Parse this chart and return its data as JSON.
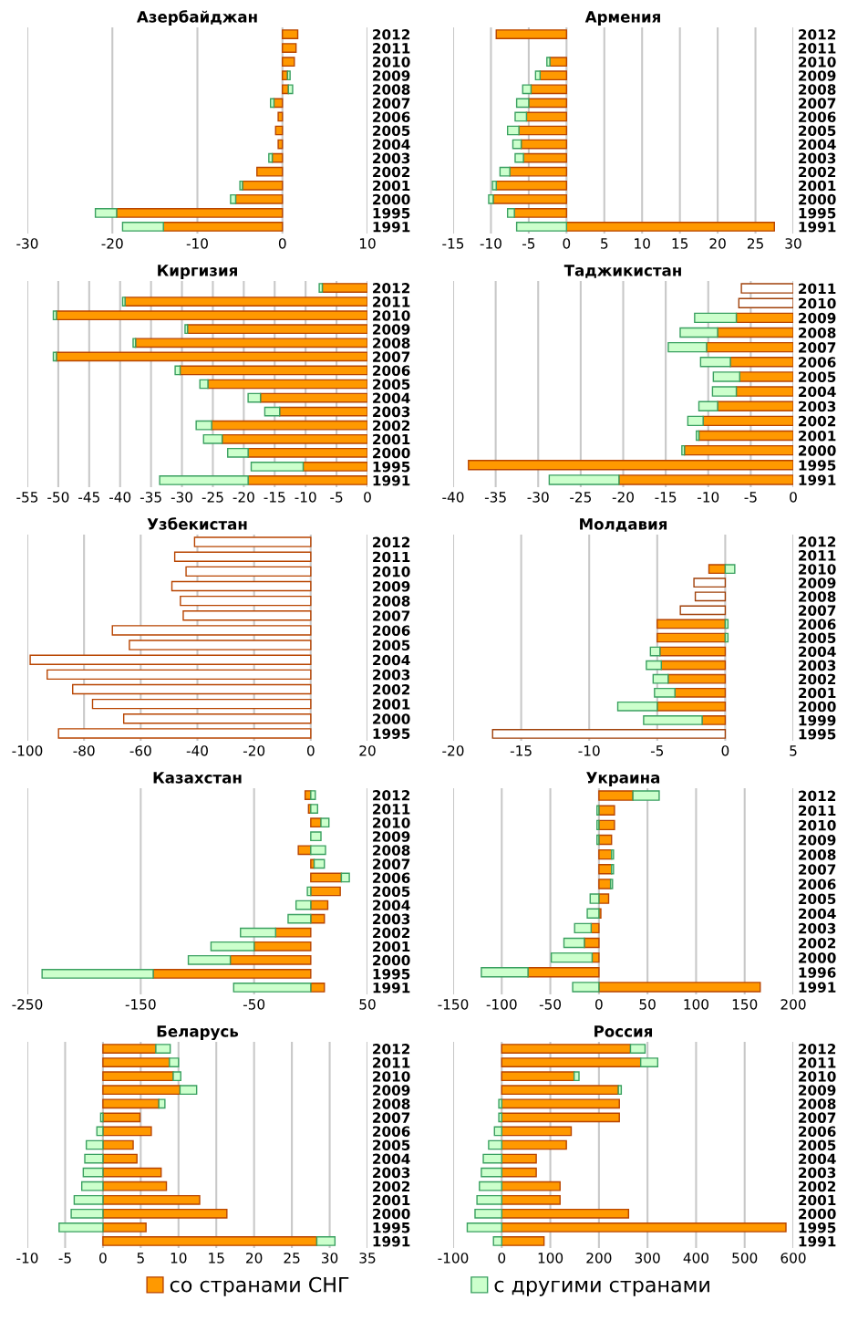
{
  "chart_data": [
    {
      "type": "bar",
      "orientation": "horizontal",
      "stacked": true,
      "title": "Азербайджан",
      "categories": [
        "2012",
        "2011",
        "2010",
        "2009",
        "2008",
        "2007",
        "2006",
        "2005",
        "2004",
        "2003",
        "2002",
        "2001",
        "2000",
        "1995",
        "1991"
      ],
      "series": [
        {
          "name": "со странами СНГ",
          "color": "#ff9900",
          "values": [
            1.8,
            1.6,
            1.4,
            0.6,
            0.7,
            -1.0,
            -0.5,
            -0.8,
            -0.5,
            -1.2,
            -3.0,
            -4.7,
            -5.5,
            -19.5,
            -14
          ]
        },
        {
          "name": "с другими странами",
          "color": "#ccffcc",
          "values": [
            null,
            null,
            null,
            0.3,
            0.5,
            -0.4,
            null,
            null,
            null,
            -0.4,
            null,
            -0.3,
            -0.6,
            -2.5,
            -4.8
          ]
        }
      ],
      "xlim": [
        -30,
        10
      ],
      "xticks": [
        -30,
        -20,
        -10,
        0,
        10
      ],
      "grid": "x",
      "legend": "bottom"
    },
    {
      "type": "bar",
      "orientation": "horizontal",
      "stacked": true,
      "title": "Армения",
      "categories": [
        "2012",
        "2011",
        "2010",
        "2009",
        "2008",
        "2007",
        "2006",
        "2005",
        "2004",
        "2003",
        "2002",
        "2001",
        "2000",
        "1995",
        "1991"
      ],
      "series": [
        {
          "name": "со странами СНГ",
          "color": "#ff9900",
          "values": [
            -9.3,
            null,
            -2.2,
            -3.5,
            -4.7,
            -5.0,
            -5.3,
            -6.3,
            -6.0,
            -5.7,
            -7.5,
            -9.3,
            -9.7,
            -6.9,
            27.5
          ]
        },
        {
          "name": "с другими странами",
          "color": "#ccffcc",
          "values": [
            null,
            null,
            -0.4,
            -0.6,
            -1.1,
            -1.6,
            -1.5,
            -1.5,
            -1.1,
            -1.1,
            -1.3,
            -0.5,
            -0.6,
            -0.9,
            -6.6
          ]
        }
      ],
      "xlim": [
        -15,
        30
      ],
      "xticks": [
        -15,
        -10,
        -5,
        0,
        5,
        10,
        15,
        20,
        25,
        30
      ],
      "grid": "x",
      "legend": "bottom"
    },
    {
      "type": "bar",
      "orientation": "horizontal",
      "stacked": true,
      "title": "Киргизия",
      "categories": [
        "2012",
        "2011",
        "2010",
        "2009",
        "2008",
        "2007",
        "2006",
        "2005",
        "2004",
        "2003",
        "2002",
        "2001",
        "2000",
        "1995",
        "1991"
      ],
      "series": [
        {
          "name": "со странами СНГ",
          "color": "#ff9900",
          "values": [
            -7.3,
            -39.2,
            -50.3,
            -29.1,
            -37.5,
            -50.3,
            -30.3,
            -25.8,
            -17.3,
            -14.2,
            -25.2,
            -23.5,
            -19.3,
            -10.4,
            -19.3
          ]
        },
        {
          "name": "с другими странами",
          "color": "#ccffcc",
          "values": [
            -0.5,
            -0.4,
            -0.5,
            -0.4,
            -0.4,
            -0.5,
            -0.8,
            -1.3,
            -2.0,
            -2.4,
            -2.5,
            -3.0,
            -3.3,
            -8.4,
            -14.3
          ]
        }
      ],
      "xlim": [
        -55,
        0
      ],
      "xticks": [
        -55,
        -50,
        -45,
        -40,
        -35,
        -30,
        -25,
        -20,
        -15,
        -10,
        -5,
        0
      ],
      "grid": "x",
      "legend": "bottom"
    },
    {
      "type": "bar",
      "orientation": "horizontal",
      "stacked": true,
      "title": "Таджикистан",
      "categories": [
        "2011",
        "2010",
        "2009",
        "2008",
        "2007",
        "2006",
        "2005",
        "2004",
        "2003",
        "2002",
        "2001",
        "2000",
        "1995",
        "1991"
      ],
      "series": [
        {
          "name": "со странами СНГ",
          "color": "#ff9900",
          "values": [
            null,
            null,
            -6.7,
            -8.9,
            -10.2,
            -7.4,
            -6.3,
            -6.7,
            -8.9,
            -10.6,
            -11.1,
            -12.8,
            -38.2,
            -20.5
          ]
        },
        {
          "name": "с другими странами",
          "color": "#ccffcc",
          "values": [
            null,
            null,
            -4.9,
            -4.4,
            -4.5,
            -3.5,
            -3.1,
            -2.8,
            -2.2,
            -1.8,
            -0.3,
            -0.3,
            null,
            -8.2
          ]
        },
        {
          "color": "#ffffff",
          "values": [
            -6.1,
            -6.4,
            null,
            null,
            null,
            null,
            null,
            null,
            null,
            null,
            null,
            null,
            null,
            null
          ]
        }
      ],
      "xlim": [
        -40,
        0
      ],
      "xticks": [
        -40,
        -35,
        -30,
        -25,
        -20,
        -15,
        -10,
        -5,
        0
      ],
      "grid": "x",
      "legend": "bottom"
    },
    {
      "type": "bar",
      "orientation": "horizontal",
      "stacked": true,
      "title": "Узбекистан",
      "categories": [
        "2012",
        "2011",
        "2010",
        "2009",
        "2008",
        "2007",
        "2006",
        "2005",
        "2004",
        "2003",
        "2002",
        "2001",
        "2000",
        "1995"
      ],
      "series": [
        {
          "color": "#ffffff",
          "values": [
            -41,
            -48,
            -44,
            -49,
            -46,
            -45,
            -70,
            -64,
            -99,
            -93,
            -84,
            -77,
            -66,
            -89
          ]
        }
      ],
      "xlim": [
        -100,
        20
      ],
      "xticks": [
        -100,
        -80,
        -60,
        -40,
        -20,
        0,
        20
      ],
      "grid": "x"
    },
    {
      "type": "bar",
      "orientation": "horizontal",
      "stacked": true,
      "title": "Молдавия",
      "categories": [
        "2012",
        "2011",
        "2010",
        "2009",
        "2008",
        "2007",
        "2006",
        "2005",
        "2004",
        "2003",
        "2002",
        "2001",
        "2000",
        "1999",
        "1995"
      ],
      "series": [
        {
          "name": "со странами СНГ",
          "color": "#ff9900",
          "values": [
            null,
            null,
            -1.2,
            null,
            null,
            null,
            -5.0,
            -5.0,
            -4.8,
            -4.7,
            -4.2,
            -3.7,
            -5.0,
            -1.7,
            null
          ]
        },
        {
          "name": "с другими странами",
          "color": "#ccffcc",
          "values": [
            null,
            null,
            0.7,
            null,
            null,
            null,
            0.2,
            0.2,
            -0.7,
            -1.1,
            -1.1,
            -1.5,
            -2.9,
            -4.3,
            null
          ]
        },
        {
          "color": "#ffffff",
          "values": [
            null,
            null,
            null,
            -2.3,
            -2.2,
            -3.3,
            null,
            null,
            null,
            null,
            null,
            null,
            null,
            null,
            -17.1
          ]
        }
      ],
      "xlim": [
        -20,
        5
      ],
      "xticks": [
        -20,
        -15,
        -10,
        -5,
        0,
        5
      ],
      "grid": "x",
      "legend": "bottom"
    },
    {
      "type": "bar",
      "orientation": "horizontal",
      "stacked": true,
      "title": "Казахстан",
      "categories": [
        "2012",
        "2011",
        "2010",
        "2009",
        "2008",
        "2007",
        "2006",
        "2005",
        "2004",
        "2003",
        "2002",
        "2001",
        "2000",
        "1995",
        "1991"
      ],
      "series": [
        {
          "name": "со странами СНГ",
          "color": "#ff9900",
          "values": [
            -5,
            -2,
            9,
            null,
            -11,
            3,
            27,
            26,
            15,
            12,
            -31,
            -50,
            -71,
            -139,
            12
          ]
        },
        {
          "name": "с другими странами",
          "color": "#ccffcc",
          "values": [
            4,
            6,
            7,
            9,
            13,
            9,
            7,
            -3,
            -13,
            -20,
            -31,
            -38,
            -37,
            -98,
            -68
          ]
        }
      ],
      "xlim": [
        -250,
        50
      ],
      "xticks": [
        -250,
        -150,
        -50,
        50
      ],
      "grid": "x",
      "legend": "bottom"
    },
    {
      "type": "bar",
      "orientation": "horizontal",
      "stacked": true,
      "title": "Украина",
      "categories": [
        "2012",
        "2011",
        "2010",
        "2009",
        "2008",
        "2007",
        "2006",
        "2005",
        "2004",
        "2003",
        "2002",
        "2000",
        "1996",
        "1991"
      ],
      "series": [
        {
          "name": "со странами СНГ",
          "color": "#ff9900",
          "values": [
            35,
            16,
            16,
            13,
            13,
            13,
            12,
            10,
            2,
            -8,
            -15,
            -7,
            -73,
            166
          ]
        },
        {
          "name": "с другими странами",
          "color": "#ccffcc",
          "values": [
            27,
            -2,
            -2,
            -2,
            2,
            2,
            2,
            -9,
            -12,
            -17,
            -21,
            -42,
            -48,
            -27
          ]
        }
      ],
      "xlim": [
        -150,
        200
      ],
      "xticks": [
        -150,
        -100,
        -50,
        0,
        50,
        100,
        150,
        200
      ],
      "grid": "x",
      "legend": "bottom"
    },
    {
      "type": "bar",
      "orientation": "horizontal",
      "stacked": true,
      "title": "Беларусь",
      "categories": [
        "2012",
        "2011",
        "2010",
        "2009",
        "2008",
        "2007",
        "2006",
        "2005",
        "2004",
        "2003",
        "2002",
        "2001",
        "2000",
        "1995",
        "1991"
      ],
      "series": [
        {
          "name": "со странами СНГ",
          "color": "#ff9900",
          "values": [
            7.0,
            8.8,
            9.3,
            10.2,
            7.4,
            4.9,
            6.4,
            4.0,
            4.5,
            7.7,
            8.4,
            12.8,
            16.4,
            5.7,
            28.3
          ]
        },
        {
          "name": "с другими странами",
          "color": "#ccffcc",
          "values": [
            1.9,
            1.2,
            1.0,
            2.2,
            0.8,
            -0.3,
            -0.8,
            -2.2,
            -2.4,
            -2.6,
            -2.8,
            -3.8,
            -4.2,
            -5.8,
            2.4
          ]
        }
      ],
      "xlim": [
        -10,
        35
      ],
      "xticks": [
        -10,
        -5,
        0,
        5,
        10,
        15,
        20,
        25,
        30,
        35
      ],
      "grid": "x",
      "legend": "bottom"
    },
    {
      "type": "bar",
      "orientation": "horizontal",
      "stacked": true,
      "title": "Россия",
      "categories": [
        "2012",
        "2011",
        "2010",
        "2009",
        "2008",
        "2007",
        "2006",
        "2005",
        "2004",
        "2003",
        "2002",
        "2001",
        "2000",
        "1995",
        "1991"
      ],
      "series": [
        {
          "name": "со странами СНГ",
          "color": "#ff9900",
          "values": [
            265,
            286,
            149,
            240,
            242,
            242,
            143,
            133,
            71,
            71,
            120,
            120,
            261,
            585,
            87
          ]
        },
        {
          "name": "с другими странами",
          "color": "#ccffcc",
          "values": [
            30,
            35,
            10,
            6,
            -6,
            -6,
            -15,
            -27,
            -38,
            -42,
            -46,
            -51,
            -55,
            -71,
            -17
          ]
        }
      ],
      "xlim": [
        -100,
        600
      ],
      "xticks": [
        -100,
        0,
        100,
        200,
        300,
        400,
        500,
        600
      ],
      "grid": "x",
      "legend": "bottom"
    }
  ]
}
